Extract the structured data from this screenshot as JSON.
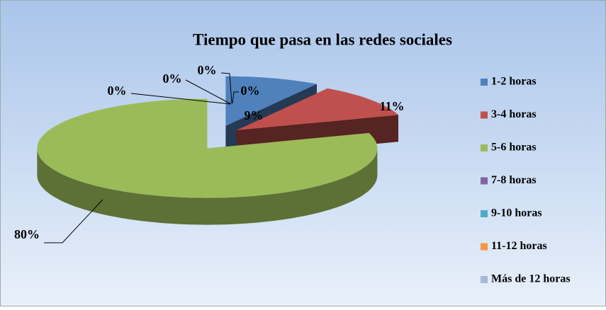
{
  "chart_data": {
    "type": "pie",
    "title": "Tiempo que pasa en las redes sociales",
    "categories": [
      "1-2 horas",
      "3-4 horas",
      "5-6 horas",
      "7-8 horas",
      "9-10 horas",
      "11-12 horas",
      "Más de 12 horas"
    ],
    "values": [
      9,
      11,
      80,
      0,
      0,
      0,
      0
    ],
    "value_labels": [
      "9%",
      "11%",
      "80%",
      "0%",
      "0%",
      "0%",
      "0%"
    ],
    "colors": [
      "#4f81bd",
      "#c0504d",
      "#9bbb59",
      "#8064a2",
      "#4bacc6",
      "#f79646",
      "#a5b8da"
    ],
    "legend": "right"
  }
}
